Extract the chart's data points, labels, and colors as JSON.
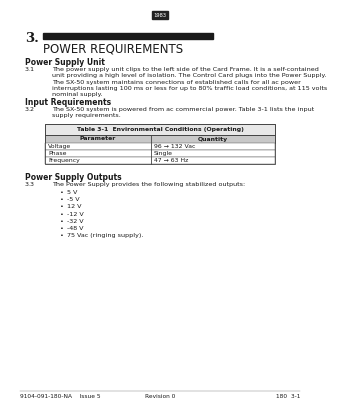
{
  "page_num_label": "1983",
  "chapter_num": "3.",
  "chapter_title": "POWER REQUIREMENTS",
  "section1_title": "Power Supply Unit",
  "para_3_1_num": "3.1",
  "para_3_1_text1": "The power supply unit clips to the left side of the Card Frame. It is a self-contained\nunit providing a high level of isolation. The Control Card plugs into the Power Supply.",
  "para_3_1_text2": "The SX-50 system maintains connections of established calls for all ac power\ninterruptions lasting 100 ms or less for up to 80% traffic load conditions, at 115 volts\nnominal supply.",
  "section2_title": "Input Requirements",
  "para_3_2_num": "3.2",
  "para_3_2_text": "The SX-50 system is powered from ac commercial power. Table 3-1 lists the input\nsupply requirements.",
  "table_title": "Table 3-1  Environmental Conditions (Operating)",
  "table_col1_header": "Parameter",
  "table_col2_header": "Quantity",
  "table_rows": [
    [
      "Voltage",
      "96 → 132 Vac"
    ],
    [
      "Phase",
      "Single"
    ],
    [
      "Frequency",
      "47 → 63 Hz"
    ]
  ],
  "section3_title": "Power Supply Outputs",
  "para_3_3_num": "3.3",
  "para_3_3_text": "The Power Supply provides the following stabilized outputs:",
  "bullet_items": [
    "5 V",
    "-5 V",
    "12 V",
    "-12 V",
    "-32 V",
    "-48 V",
    "75 Vac (ringing supply)."
  ],
  "footer_left": "9104-091-180-NA    Issue 5",
  "footer_center": "Revision 0",
  "footer_right": "180  3-1",
  "bg_color": "#ffffff",
  "text_color": "#1a1a1a",
  "table_header_bg": "#c8c8c8",
  "table_title_bg": "#e8e8e8",
  "black_bar_color": "#1a1a1a"
}
